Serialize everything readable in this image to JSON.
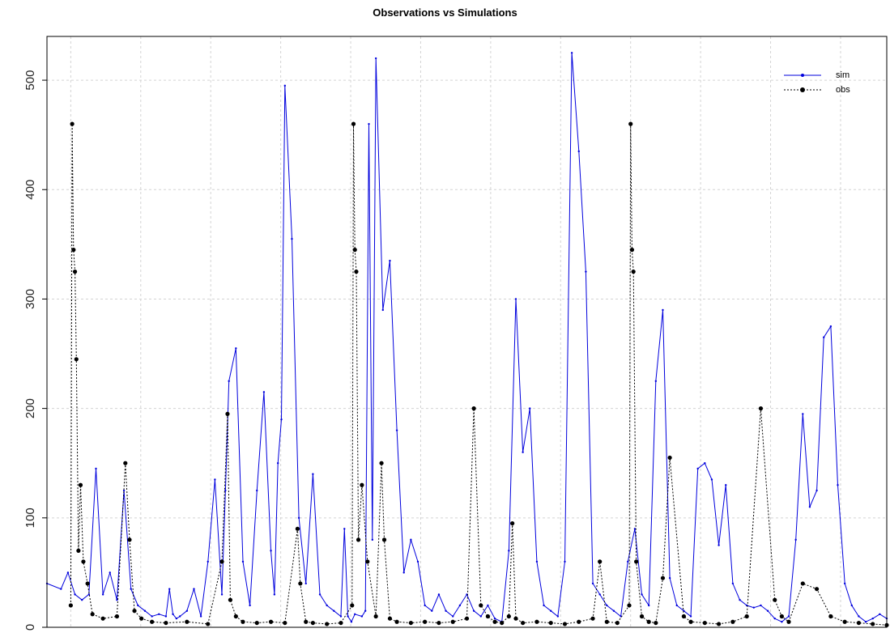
{
  "chart_data": {
    "type": "line",
    "title": "Observations vs Simulations",
    "xlabel": "",
    "ylabel": "",
    "ylim": [
      0,
      540
    ],
    "yticks": [
      0,
      100,
      200,
      300,
      400,
      500
    ],
    "grid": true,
    "legend_position": "top-right",
    "x_domain": [
      0,
      1200
    ],
    "x_gridlines": [
      34,
      134,
      234,
      334,
      434,
      534,
      634,
      734,
      834,
      934,
      1034,
      1134
    ],
    "series": [
      {
        "name": "sim",
        "color": "#0000dd",
        "line_style": "solid",
        "marker": "small-point",
        "x": [
          0,
          20,
          30,
          40,
          50,
          60,
          70,
          80,
          90,
          100,
          110,
          120,
          130,
          140,
          150,
          160,
          170,
          175,
          180,
          185,
          190,
          200,
          210,
          220,
          230,
          240,
          250,
          255,
          260,
          270,
          280,
          290,
          300,
          310,
          320,
          325,
          330,
          335,
          340,
          350,
          360,
          370,
          380,
          390,
          400,
          410,
          420,
          425,
          430,
          435,
          440,
          450,
          455,
          460,
          465,
          470,
          480,
          490,
          500,
          510,
          520,
          530,
          540,
          550,
          560,
          570,
          580,
          590,
          600,
          610,
          620,
          630,
          640,
          650,
          660,
          670,
          680,
          690,
          700,
          710,
          720,
          730,
          740,
          750,
          760,
          770,
          780,
          790,
          800,
          810,
          820,
          830,
          840,
          850,
          860,
          870,
          880,
          890,
          900,
          910,
          920,
          930,
          940,
          950,
          960,
          970,
          980,
          990,
          1000,
          1010,
          1020,
          1030,
          1040,
          1050,
          1060,
          1070,
          1080,
          1090,
          1100,
          1110,
          1120,
          1130,
          1140,
          1150,
          1160,
          1170,
          1180,
          1190,
          1200
        ],
        "y": [
          40,
          35,
          50,
          30,
          25,
          30,
          145,
          30,
          50,
          25,
          125,
          35,
          20,
          15,
          10,
          12,
          10,
          35,
          12,
          8,
          10,
          15,
          35,
          10,
          60,
          135,
          30,
          125,
          225,
          255,
          60,
          20,
          125,
          215,
          70,
          30,
          150,
          190,
          495,
          355,
          100,
          40,
          140,
          30,
          20,
          15,
          10,
          90,
          10,
          5,
          12,
          10,
          15,
          460,
          80,
          520,
          290,
          335,
          180,
          50,
          80,
          60,
          20,
          15,
          30,
          15,
          10,
          20,
          30,
          15,
          10,
          20,
          8,
          5,
          70,
          300,
          160,
          200,
          60,
          20,
          15,
          10,
          60,
          525,
          435,
          325,
          40,
          30,
          20,
          15,
          10,
          60,
          90,
          30,
          20,
          225,
          290,
          45,
          20,
          15,
          10,
          145,
          150,
          135,
          75,
          130,
          40,
          25,
          20,
          18,
          20,
          15,
          8,
          5,
          10,
          80,
          195,
          110,
          125,
          265,
          275,
          130,
          40,
          20,
          10,
          5,
          8,
          12,
          8
        ]
      },
      {
        "name": "obs",
        "color": "#000000",
        "line_style": "dotted",
        "marker": "filled-circle",
        "x": [
          34,
          36,
          38,
          40,
          42,
          45,
          48,
          52,
          58,
          65,
          80,
          100,
          112,
          118,
          125,
          135,
          150,
          170,
          200,
          230,
          250,
          258,
          262,
          270,
          280,
          300,
          320,
          340,
          358,
          362,
          370,
          380,
          400,
          420,
          436,
          438,
          440,
          442,
          445,
          450,
          458,
          470,
          478,
          482,
          490,
          500,
          520,
          540,
          560,
          580,
          600,
          610,
          620,
          630,
          640,
          650,
          660,
          665,
          670,
          680,
          700,
          720,
          740,
          760,
          780,
          790,
          800,
          815,
          832,
          834,
          836,
          838,
          842,
          850,
          860,
          870,
          880,
          890,
          910,
          920,
          940,
          960,
          980,
          1000,
          1020,
          1040,
          1050,
          1060,
          1080,
          1100,
          1120,
          1140,
          1160,
          1180,
          1200
        ],
        "y": [
          20,
          460,
          345,
          325,
          245,
          70,
          130,
          60,
          40,
          12,
          8,
          10,
          150,
          80,
          15,
          8,
          5,
          4,
          5,
          3,
          60,
          195,
          25,
          10,
          5,
          4,
          5,
          4,
          90,
          40,
          5,
          4,
          3,
          4,
          20,
          460,
          345,
          325,
          80,
          130,
          60,
          10,
          150,
          80,
          8,
          5,
          4,
          5,
          4,
          5,
          8,
          200,
          20,
          10,
          5,
          4,
          10,
          95,
          8,
          4,
          5,
          4,
          3,
          5,
          8,
          60,
          5,
          4,
          20,
          460,
          345,
          325,
          60,
          10,
          5,
          4,
          45,
          155,
          10,
          5,
          4,
          3,
          5,
          10,
          200,
          25,
          10,
          5,
          40,
          35,
          10,
          5,
          4,
          3,
          2
        ]
      }
    ]
  }
}
